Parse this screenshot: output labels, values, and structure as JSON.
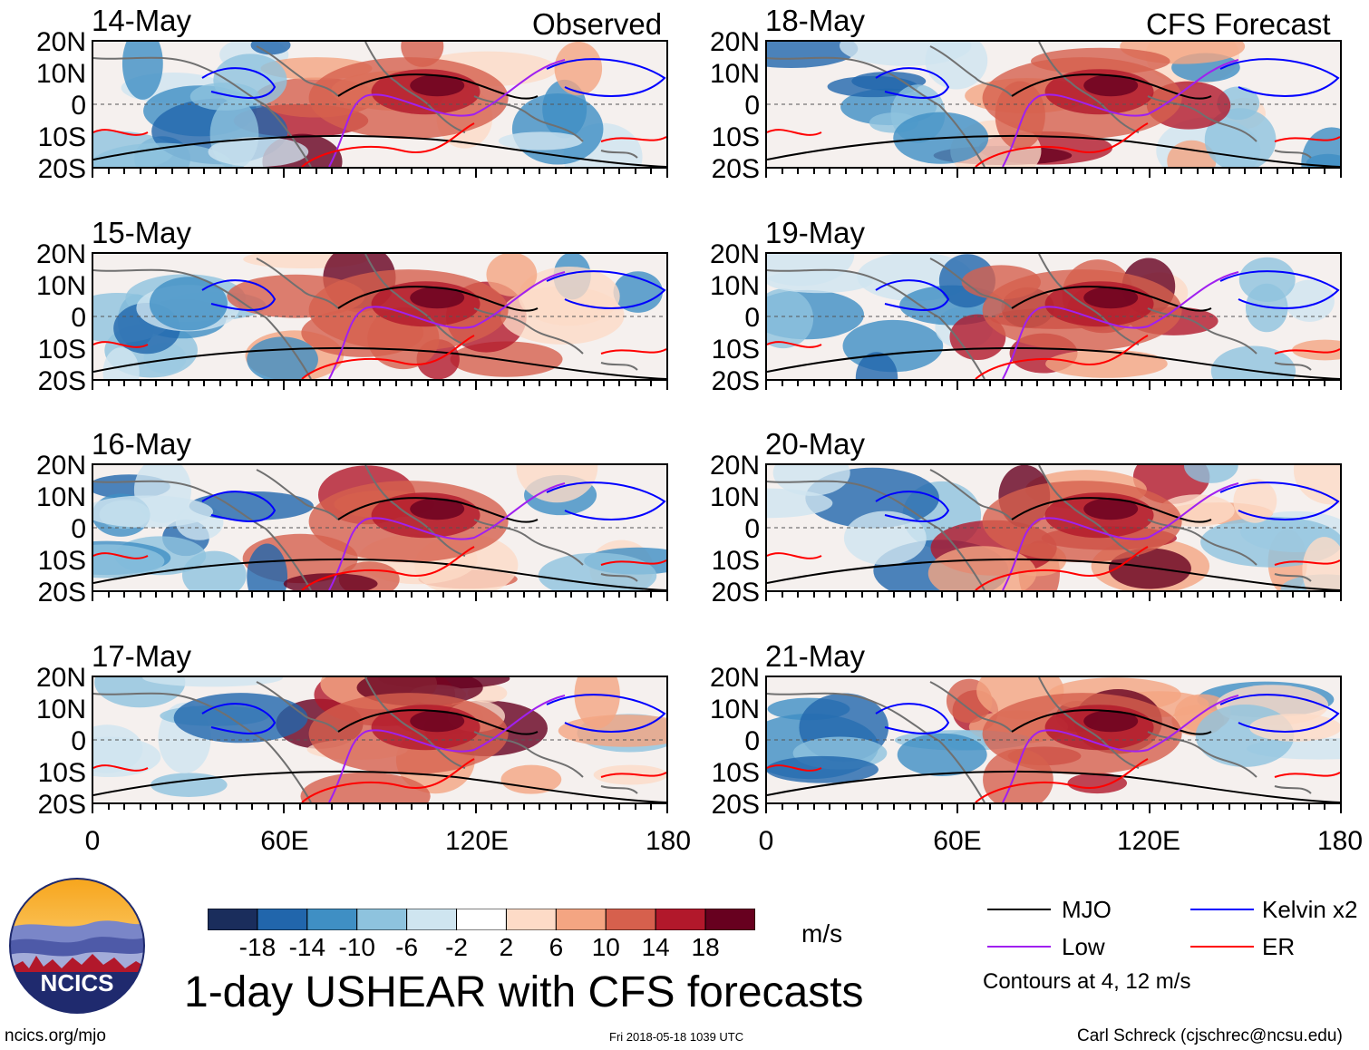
{
  "headings": {
    "observed": "Observed",
    "forecast": "CFS Forecast"
  },
  "panels": [
    {
      "date": "14-May",
      "column": "observed"
    },
    {
      "date": "15-May",
      "column": "observed"
    },
    {
      "date": "16-May",
      "column": "observed"
    },
    {
      "date": "17-May",
      "column": "observed"
    },
    {
      "date": "18-May",
      "column": "forecast"
    },
    {
      "date": "19-May",
      "column": "forecast"
    },
    {
      "date": "20-May",
      "column": "forecast"
    },
    {
      "date": "21-May",
      "column": "forecast"
    }
  ],
  "y_axis_labels": [
    "20N",
    "10N",
    "0",
    "10S",
    "20S"
  ],
  "x_axis_labels": [
    "0",
    "60E",
    "120E",
    "180"
  ],
  "colorbar": {
    "tick_labels": [
      "-18",
      "-14",
      "-10",
      "-6",
      "-2",
      "2",
      "6",
      "10",
      "14",
      "18"
    ],
    "colors": [
      "#1a2d5c",
      "#2166ac",
      "#3f8fc4",
      "#8ec3de",
      "#cfe5f0",
      "#ffffff",
      "#fddbc7",
      "#f4a582",
      "#d6604d",
      "#b2182b",
      "#67001f"
    ],
    "units": "m/s"
  },
  "legend": {
    "items": [
      {
        "label": "MJO",
        "color": "#000000"
      },
      {
        "label": "Kelvin x2",
        "color": "#0000ff"
      },
      {
        "label": "Low",
        "color": "#a020f0"
      },
      {
        "label": "ER",
        "color": "#ff0000"
      }
    ],
    "note": "Contours at 4, 12 m/s"
  },
  "logo": {
    "text": "NCICS"
  },
  "title": "1-day USHEAR with CFS forecasts",
  "footer": {
    "url": "ncics.org/mjo",
    "timestamp": "Fri 2018-05-18 1039 UTC",
    "credit": "Carl Schreck (cjschrec@ncsu.edu)"
  }
}
